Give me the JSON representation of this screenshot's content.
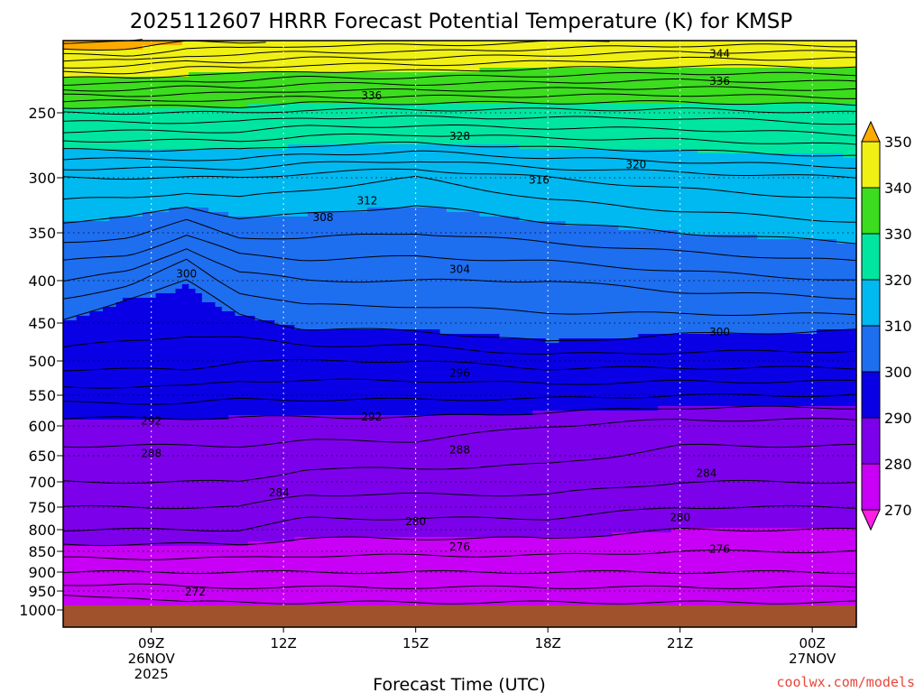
{
  "chart_data": {
    "type": "contour",
    "title": "2025112607 HRRR Forecast Potential Temperature (K) for KMSP",
    "xlabel": "Forecast Time (UTC)",
    "ylabel": "",
    "credit": "coolwx.com/models",
    "credit_color": "#e8463a",
    "x_ticks": [
      {
        "hour": 9,
        "lines": [
          "09Z",
          "26NOV",
          "2025"
        ]
      },
      {
        "hour": 12,
        "lines": [
          "12Z"
        ]
      },
      {
        "hour": 15,
        "lines": [
          "15Z"
        ]
      },
      {
        "hour": 18,
        "lines": [
          "18Z"
        ]
      },
      {
        "hour": 21,
        "lines": [
          "21Z"
        ]
      },
      {
        "hour": 24,
        "lines": [
          "00Z",
          "27NOV"
        ]
      }
    ],
    "xlim": [
      7.0,
      25.0
    ],
    "ylim_hpa": [
      1050,
      200
    ],
    "y_ticks": [
      250,
      300,
      350,
      400,
      450,
      500,
      550,
      600,
      650,
      700,
      750,
      800,
      850,
      900,
      950,
      1000
    ],
    "ground_level_hpa": 988,
    "colorbar": {
      "levels": [
        270,
        280,
        290,
        300,
        310,
        320,
        330,
        340,
        350
      ],
      "bands": [
        {
          "from": 260,
          "to": 270,
          "color": "#ff1ee6"
        },
        {
          "from": 270,
          "to": 280,
          "color": "#c800f5"
        },
        {
          "from": 280,
          "to": 290,
          "color": "#7d00eb"
        },
        {
          "from": 290,
          "to": 300,
          "color": "#0a00e6"
        },
        {
          "from": 300,
          "to": 310,
          "color": "#1e6ef0"
        },
        {
          "from": 310,
          "to": 320,
          "color": "#00b9f0"
        },
        {
          "from": 320,
          "to": 330,
          "color": "#00e6a0"
        },
        {
          "from": 330,
          "to": 340,
          "color": "#3cdc1e"
        },
        {
          "from": 340,
          "to": 350,
          "color": "#f0f014"
        },
        {
          "from": 350,
          "to": 360,
          "color": "#ffaa00"
        }
      ]
    },
    "contour_interval_K": 2,
    "contour_labels": [
      {
        "value": 344,
        "hour": 21.9,
        "hpa": 209
      },
      {
        "value": 336,
        "hour": 21.9,
        "hpa": 228
      },
      {
        "value": 336,
        "hour": 14.0,
        "hpa": 238
      },
      {
        "value": 328,
        "hour": 16.0,
        "hpa": 268
      },
      {
        "value": 320,
        "hour": 20.0,
        "hpa": 290
      },
      {
        "value": 316,
        "hour": 17.8,
        "hpa": 302
      },
      {
        "value": 312,
        "hour": 13.9,
        "hpa": 321
      },
      {
        "value": 308,
        "hour": 12.9,
        "hpa": 336
      },
      {
        "value": 304,
        "hour": 16.0,
        "hpa": 388
      },
      {
        "value": 300,
        "hour": 21.9,
        "hpa": 462
      },
      {
        "value": 300,
        "hour": 9.8,
        "hpa": 393
      },
      {
        "value": 296,
        "hour": 16.0,
        "hpa": 518
      },
      {
        "value": 292,
        "hour": 9.0,
        "hpa": 592
      },
      {
        "value": 292,
        "hour": 14.0,
        "hpa": 585
      },
      {
        "value": 288,
        "hour": 9.0,
        "hpa": 646
      },
      {
        "value": 288,
        "hour": 16.0,
        "hpa": 640
      },
      {
        "value": 284,
        "hour": 11.9,
        "hpa": 721
      },
      {
        "value": 284,
        "hour": 21.6,
        "hpa": 684
      },
      {
        "value": 280,
        "hour": 15.0,
        "hpa": 782
      },
      {
        "value": 280,
        "hour": 21.0,
        "hpa": 773
      },
      {
        "value": 276,
        "hour": 16.0,
        "hpa": 840
      },
      {
        "value": 276,
        "hour": 21.9,
        "hpa": 845
      },
      {
        "value": 272,
        "hour": 10.0,
        "hpa": 952
      }
    ],
    "profiles": [
      {
        "hour": 7.0,
        "levels": [
          [
            980,
            271
          ],
          [
            900,
            276
          ],
          [
            800,
            282
          ],
          [
            700,
            286
          ],
          [
            600,
            289
          ],
          [
            500,
            297
          ],
          [
            430,
            301
          ],
          [
            400,
            304
          ],
          [
            300,
            314
          ],
          [
            250,
            328
          ],
          [
            210,
            348
          ]
        ]
      },
      {
        "hour": 8.5,
        "levels": [
          [
            980,
            271
          ],
          [
            900,
            276
          ],
          [
            800,
            282
          ],
          [
            700,
            286
          ],
          [
            600,
            289
          ],
          [
            500,
            297
          ],
          [
            420,
            300
          ],
          [
            400,
            303
          ],
          [
            300,
            314
          ],
          [
            250,
            328
          ],
          [
            210,
            348
          ]
        ]
      },
      {
        "hour": 9.8,
        "levels": [
          [
            980,
            272
          ],
          [
            900,
            276
          ],
          [
            800,
            282
          ],
          [
            700,
            286
          ],
          [
            600,
            289
          ],
          [
            500,
            297
          ],
          [
            400,
            300
          ],
          [
            385,
            301
          ],
          [
            300,
            314
          ],
          [
            250,
            328
          ],
          [
            210,
            346
          ]
        ]
      },
      {
        "hour": 11.0,
        "levels": [
          [
            980,
            272
          ],
          [
            900,
            276
          ],
          [
            800,
            282
          ],
          [
            700,
            286
          ],
          [
            600,
            289
          ],
          [
            500,
            296
          ],
          [
            440,
            300
          ],
          [
            400,
            303
          ],
          [
            300,
            314
          ],
          [
            250,
            328
          ],
          [
            210,
            346
          ]
        ]
      },
      {
        "hour": 12.5,
        "levels": [
          [
            980,
            272
          ],
          [
            900,
            276
          ],
          [
            800,
            281
          ],
          [
            700,
            285
          ],
          [
            600,
            289
          ],
          [
            500,
            296
          ],
          [
            458,
            300
          ],
          [
            400,
            304
          ],
          [
            300,
            313
          ],
          [
            250,
            327
          ],
          [
            210,
            345
          ]
        ]
      },
      {
        "hour": 15.0,
        "levels": [
          [
            980,
            272
          ],
          [
            900,
            276
          ],
          [
            800,
            281
          ],
          [
            700,
            285
          ],
          [
            600,
            289
          ],
          [
            500,
            296
          ],
          [
            460,
            300
          ],
          [
            400,
            304
          ],
          [
            300,
            312
          ],
          [
            250,
            327
          ],
          [
            210,
            345
          ]
        ]
      },
      {
        "hour": 18.0,
        "levels": [
          [
            980,
            272
          ],
          [
            900,
            276
          ],
          [
            800,
            281
          ],
          [
            700,
            285
          ],
          [
            600,
            288
          ],
          [
            500,
            297
          ],
          [
            475,
            300
          ],
          [
            400,
            304
          ],
          [
            300,
            314
          ],
          [
            250,
            327
          ],
          [
            210,
            344
          ]
        ]
      },
      {
        "hour": 21.0,
        "levels": [
          [
            980,
            272
          ],
          [
            900,
            276
          ],
          [
            800,
            280
          ],
          [
            700,
            284
          ],
          [
            600,
            287
          ],
          [
            500,
            297
          ],
          [
            465,
            300
          ],
          [
            400,
            305
          ],
          [
            300,
            315
          ],
          [
            250,
            327
          ],
          [
            210,
            343
          ]
        ]
      },
      {
        "hour": 25.0,
        "levels": [
          [
            980,
            272
          ],
          [
            900,
            276
          ],
          [
            800,
            280
          ],
          [
            700,
            284
          ],
          [
            600,
            287
          ],
          [
            500,
            297
          ],
          [
            460,
            300
          ],
          [
            400,
            306
          ],
          [
            300,
            316
          ],
          [
            250,
            328
          ],
          [
            210,
            343
          ]
        ]
      }
    ]
  }
}
